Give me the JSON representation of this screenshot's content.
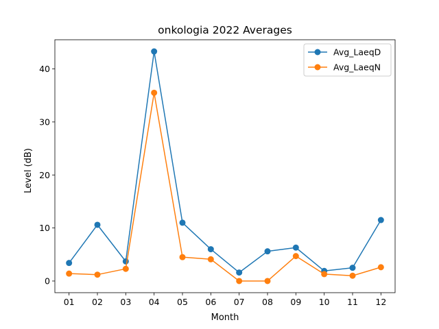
{
  "chart_data": {
    "type": "line",
    "title": "onkologia 2022 Averages",
    "xlabel": "Month",
    "ylabel": "Level (dB)",
    "categories": [
      "01",
      "02",
      "03",
      "04",
      "05",
      "06",
      "07",
      "08",
      "09",
      "10",
      "11",
      "12"
    ],
    "series": [
      {
        "name": "Avg_LaeqD",
        "color": "#1f77b4",
        "values": [
          3.4,
          10.6,
          3.7,
          43.3,
          11.0,
          6.0,
          1.6,
          5.6,
          6.3,
          1.9,
          2.5,
          11.5
        ]
      },
      {
        "name": "Avg_LaeqN",
        "color": "#ff7f0e",
        "values": [
          1.4,
          1.2,
          2.3,
          35.5,
          4.5,
          4.1,
          0.0,
          0.0,
          4.7,
          1.3,
          1.0,
          2.6
        ]
      }
    ],
    "ylim": [
      -2.2,
      45.5
    ],
    "yticks": [
      0,
      10,
      20,
      30,
      40
    ],
    "grid": false,
    "legend_position": "upper-right"
  }
}
